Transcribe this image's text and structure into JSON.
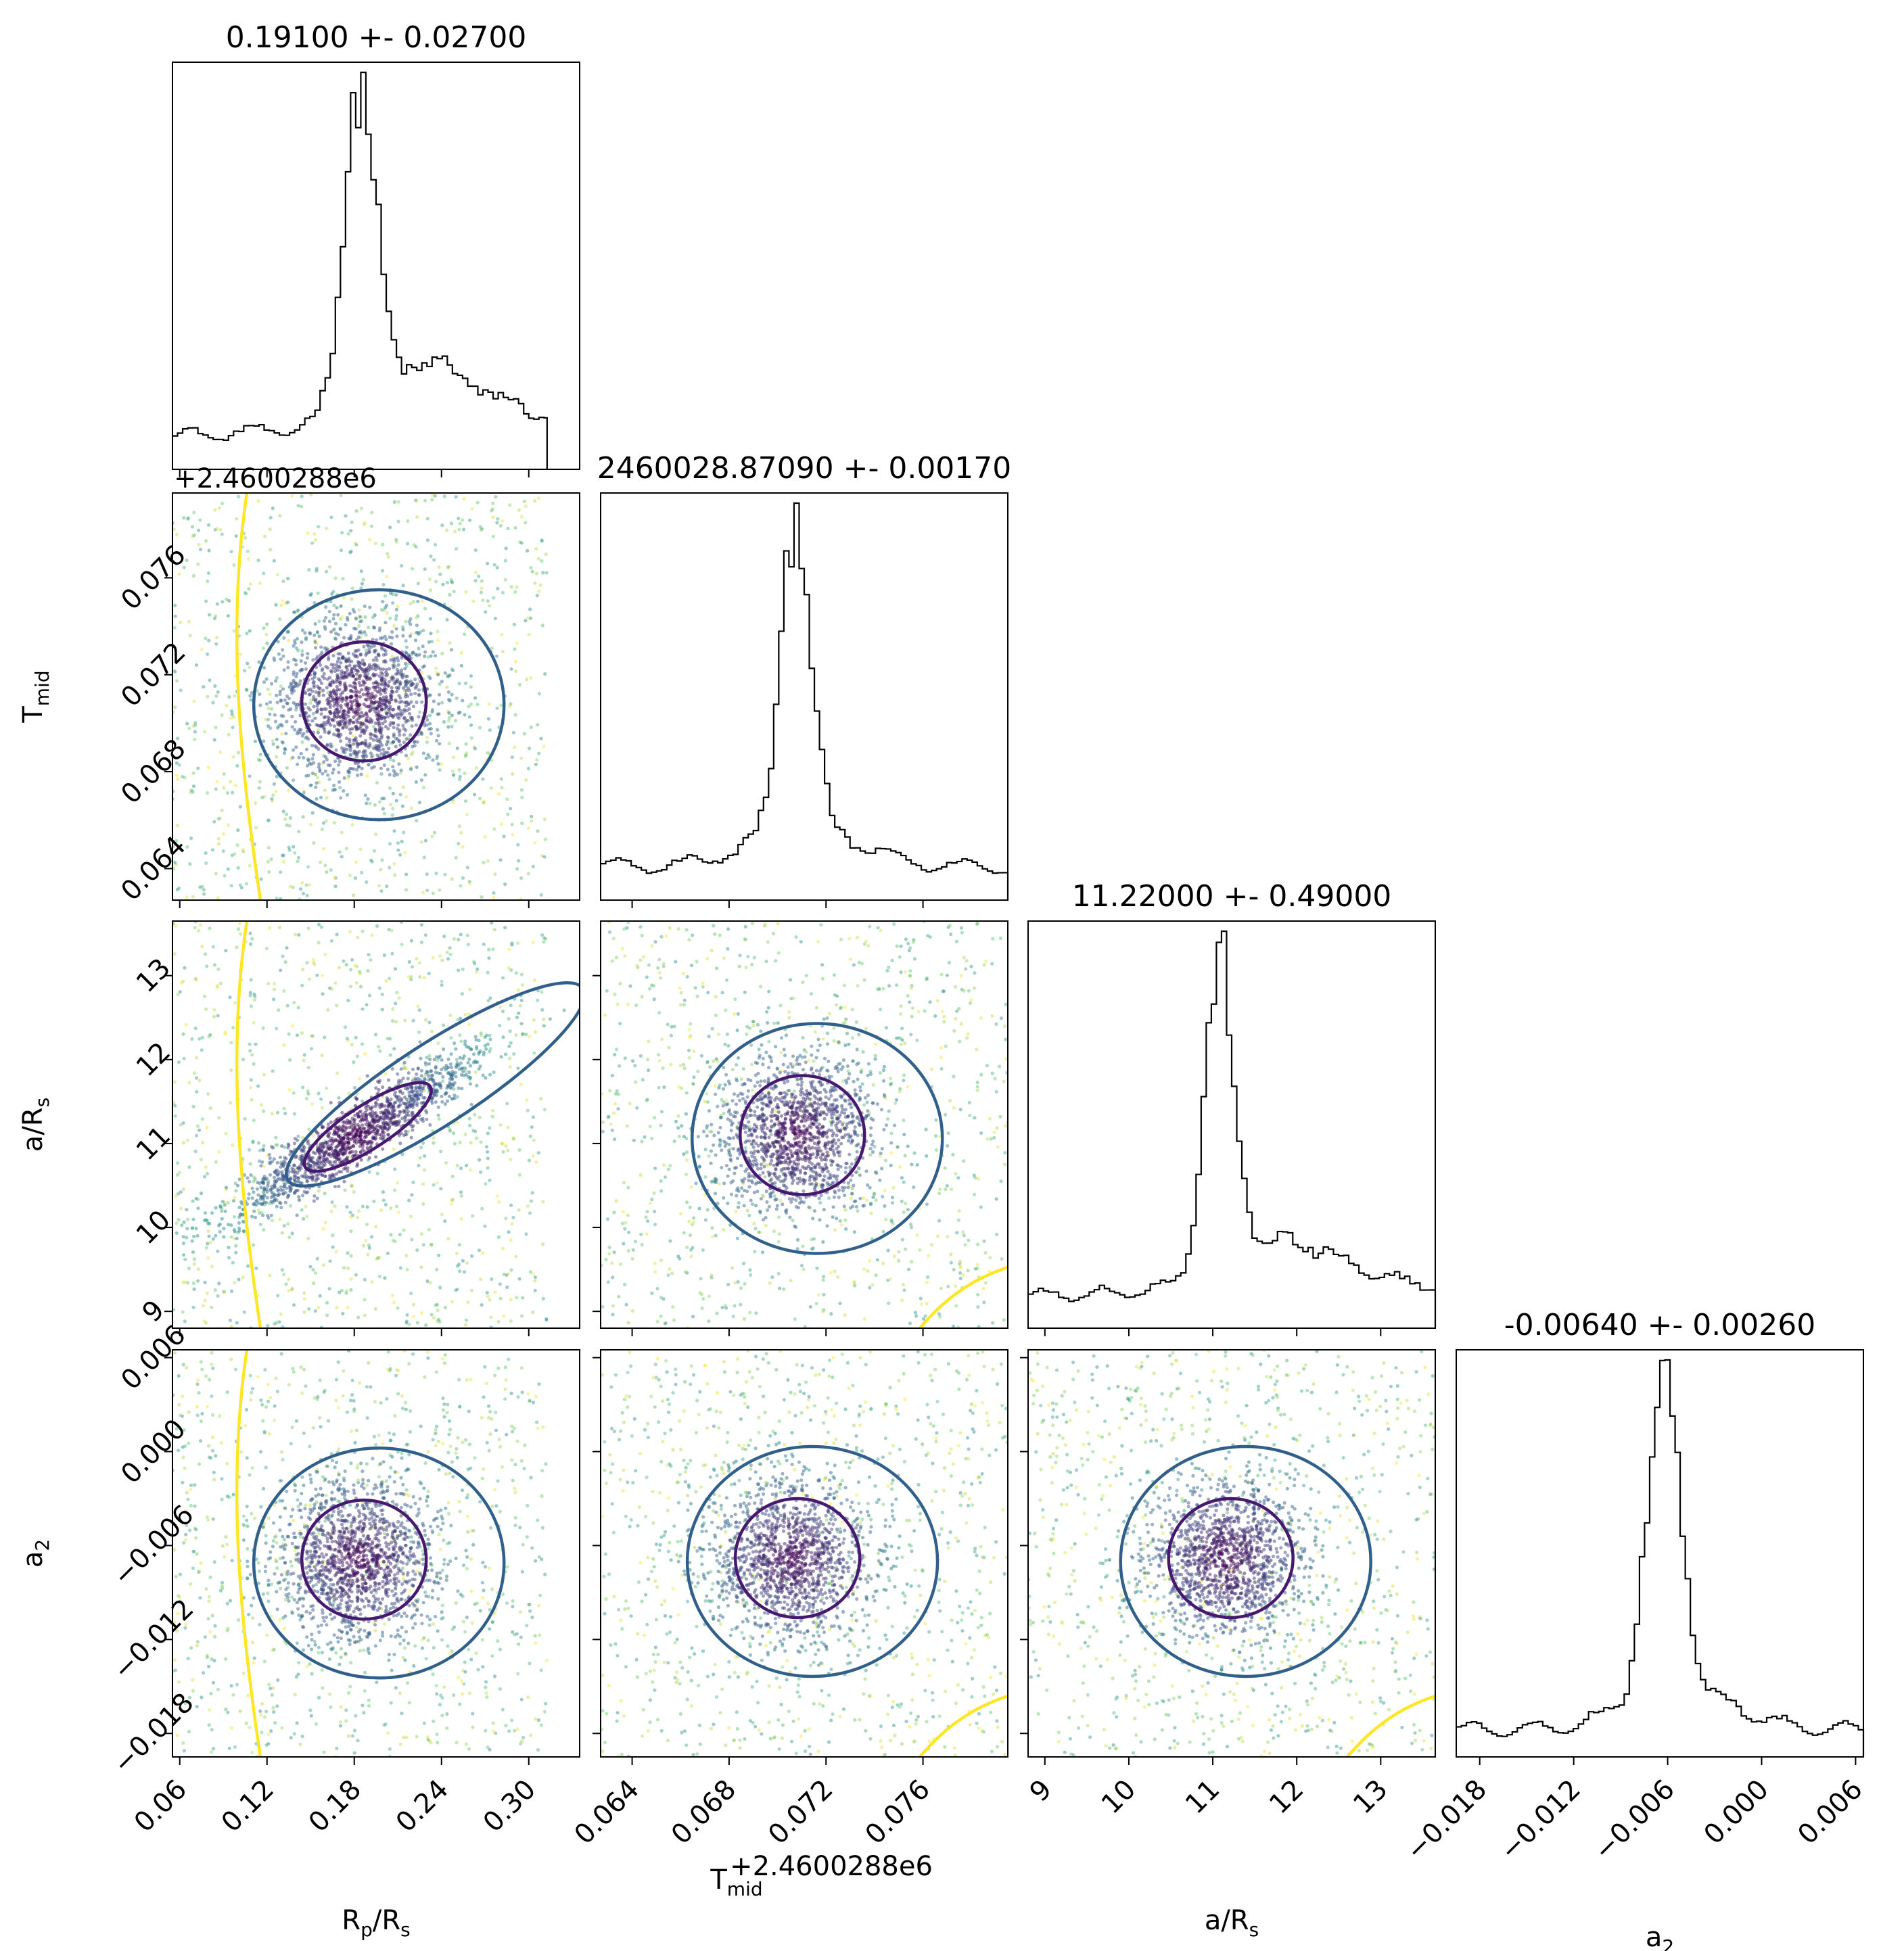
{
  "chart_data": {
    "type": "scatter",
    "subtype": "corner-plot",
    "parameters": [
      {
        "key": "rp",
        "label": "R",
        "label_sub": "p",
        "label_tail": "/R",
        "label_tail_sub": "s",
        "ticks": [
          "0.06",
          "0.12",
          "0.18",
          "0.24",
          "0.30"
        ],
        "tick_values": [
          0.06,
          0.12,
          0.18,
          0.24,
          0.3
        ],
        "range": [
          0.055,
          0.335
        ],
        "offset_text": "",
        "title": "0.19100 +- 0.02700",
        "median": 0.191,
        "sigma": 0.027,
        "y_ticks": []
      },
      {
        "key": "tmid",
        "label": "T",
        "label_sub": "mid",
        "label_tail": "",
        "label_tail_sub": "",
        "ticks": [
          "0.064",
          "0.068",
          "0.072",
          "0.076"
        ],
        "tick_values": [
          0.064,
          0.068,
          0.072,
          0.076
        ],
        "range": [
          0.0627,
          0.0795
        ],
        "offset_text": "+2.4600288e6",
        "title": "2460028.87090 +- 0.00170",
        "median": 0.0709,
        "sigma": 0.0017
      },
      {
        "key": "ars",
        "label": "a/R",
        "label_sub": "s",
        "label_tail": "",
        "label_tail_sub": "",
        "ticks": [
          "9",
          "10",
          "11",
          "12",
          "13"
        ],
        "tick_values": [
          9,
          10,
          11,
          12,
          13
        ],
        "range": [
          8.8,
          13.65
        ],
        "offset_text": "",
        "title": "11.22000 +- 0.49000",
        "median": 11.22,
        "sigma": 0.49
      },
      {
        "key": "a2",
        "label": "a",
        "label_sub": "2",
        "label_tail": "",
        "label_tail_sub": "",
        "ticks": [
          "−0.018",
          "−0.012",
          "−0.006",
          "0.000",
          "0.006"
        ],
        "tick_values": [
          -0.018,
          -0.012,
          -0.006,
          0.0,
          0.006
        ],
        "range": [
          -0.0195,
          0.0065
        ],
        "offset_text": "",
        "title": "-0.00640 +- 0.00260",
        "median": -0.0064,
        "sigma": 0.0026
      }
    ],
    "histograms": [
      {
        "param": "rp",
        "shape": "peaked-with-right-tail",
        "peak_x": 0.185
      },
      {
        "param": "tmid",
        "shape": "peaked-symmetric",
        "peak_x": 0.0709
      },
      {
        "param": "ars",
        "shape": "peaked-with-right-tail",
        "peak_x": 11.15
      },
      {
        "param": "a2",
        "shape": "peaked",
        "peak_x": -0.0068
      }
    ],
    "pairs": [
      {
        "x": "rp",
        "y": "tmid",
        "center": [
          0.183,
          0.0709
        ],
        "correlation": 0.0
      },
      {
        "x": "rp",
        "y": "ars",
        "center": [
          0.18,
          11.1
        ],
        "correlation": 0.95
      },
      {
        "x": "tmid",
        "y": "ars",
        "center": [
          0.0708,
          11.1
        ],
        "correlation": 0.0
      },
      {
        "x": "rp",
        "y": "a2",
        "center": [
          0.183,
          -0.0069
        ],
        "correlation": 0.0
      },
      {
        "x": "tmid",
        "y": "a2",
        "center": [
          0.0706,
          -0.0068
        ],
        "correlation": 0.0
      },
      {
        "x": "ars",
        "y": "a2",
        "center": [
          11.15,
          -0.0068
        ],
        "correlation": 0.0
      }
    ],
    "colormap": "viridis",
    "colors": {
      "inner_contour": "#46186e",
      "outer_contour": "#2f5f8a",
      "outer_level": "#fde725",
      "dense": "#440154",
      "hist_line": "#000000"
    },
    "grid": false,
    "legend": "none"
  }
}
